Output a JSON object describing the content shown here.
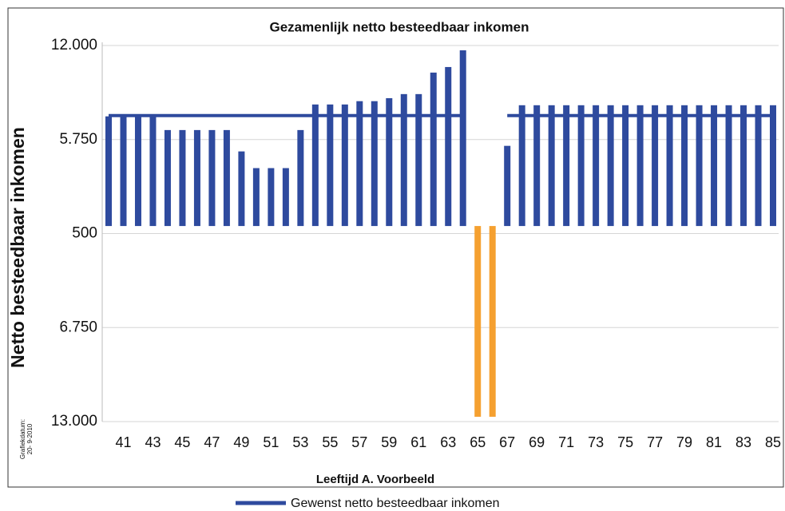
{
  "chart_data": {
    "type": "bar",
    "title": "Gezamenlijk netto besteedbaar inkomen",
    "x_label": "Leeftijd A. Voorbeeld",
    "y_label": "Netto besteedbaar inkomen",
    "date_label": [
      "Grafiekdatum:",
      "20- 9-2010"
    ],
    "categories": [
      null,
      41,
      null,
      43,
      null,
      45,
      null,
      47,
      null,
      49,
      null,
      51,
      null,
      53,
      null,
      55,
      null,
      57,
      null,
      59,
      null,
      61,
      null,
      63,
      null,
      65,
      null,
      67,
      null,
      69,
      null,
      71,
      null,
      73,
      null,
      75,
      null,
      77,
      null,
      79,
      null,
      81,
      null,
      83,
      null,
      85
    ],
    "ylim": [
      -13000,
      12000
    ],
    "yticks": [
      {
        "value": -13000,
        "label": "13.000"
      },
      {
        "value": -6750,
        "label": "6.750"
      },
      {
        "value": -500,
        "label": "500"
      },
      {
        "value": 5750,
        "label": "5.750"
      },
      {
        "value": 12000,
        "label": "12.000"
      }
    ],
    "grid": true,
    "series": [
      {
        "type": "bar",
        "color": "#2e4a9e",
        "negative_color": "#f5a030",
        "values": [
          7290,
          7290,
          7290,
          7290,
          6380,
          6380,
          6380,
          6380,
          6380,
          4960,
          3850,
          3850,
          3850,
          6380,
          8080,
          8080,
          8080,
          8300,
          8300,
          8500,
          8770,
          8770,
          10200,
          10570,
          11680,
          -12680,
          -12680,
          5330,
          8030,
          8030,
          8030,
          8030,
          8030,
          8030,
          8030,
          8030,
          8030,
          8030,
          8030,
          8030,
          8030,
          8030,
          8030,
          8030,
          8030,
          8030
        ]
      },
      {
        "type": "line",
        "name": "Gewenst netto besteedbaar inkomen",
        "color": "#2e4a9e",
        "values": [
          7340,
          7340,
          7340,
          7340,
          7340,
          7340,
          7340,
          7340,
          7340,
          7340,
          7340,
          7340,
          7340,
          7340,
          7340,
          7340,
          7340,
          7340,
          7340,
          7340,
          7340,
          7340,
          7340,
          7340,
          7340,
          null,
          null,
          7340,
          7340,
          7340,
          7340,
          7340,
          7340,
          7340,
          7340,
          7340,
          7340,
          7340,
          7340,
          7340,
          7340,
          7340,
          7340,
          7340,
          7340,
          7340
        ]
      }
    ]
  }
}
